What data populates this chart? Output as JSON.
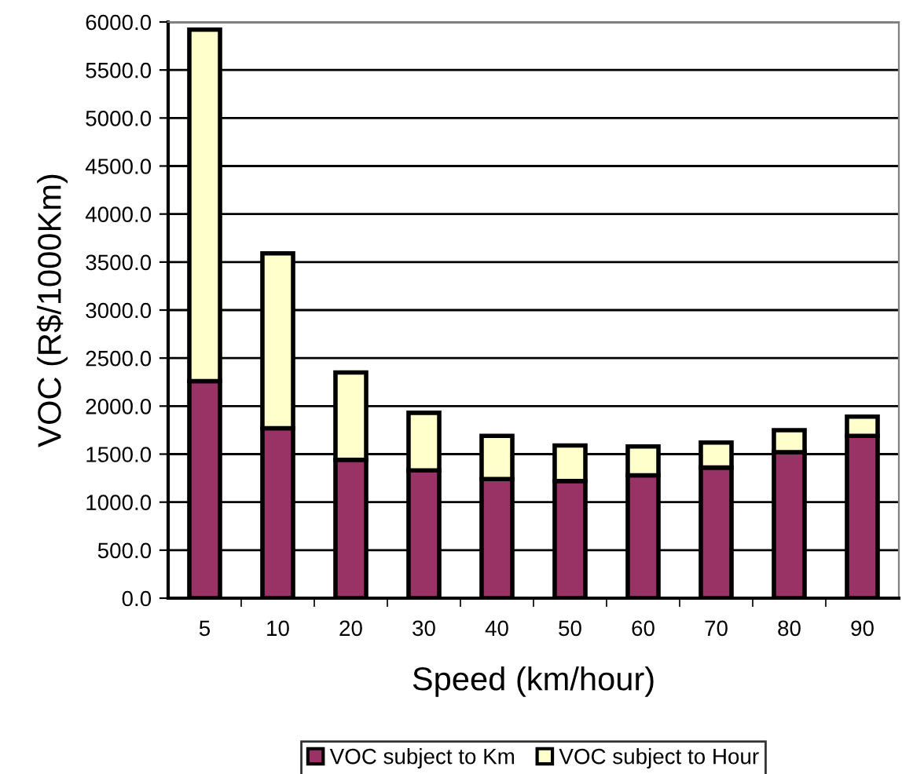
{
  "chart_data": {
    "type": "bar",
    "stacked": true,
    "xlabel": "Speed (km/hour)",
    "ylabel": "VOC (R$/1000Km)",
    "categories": [
      "5",
      "10",
      "20",
      "30",
      "40",
      "50",
      "60",
      "70",
      "80",
      "90"
    ],
    "series": [
      {
        "name": "VOC subject to Km",
        "color": "#993366",
        "values": [
          2260,
          1770,
          1440,
          1330,
          1240,
          1220,
          1280,
          1360,
          1520,
          1690
        ]
      },
      {
        "name": "VOC subject to Hour",
        "color": "#ffffcc",
        "values": [
          3660,
          1820,
          910,
          600,
          450,
          370,
          300,
          260,
          230,
          200
        ]
      }
    ],
    "ylim": [
      0,
      6000
    ],
    "yticks": [
      {
        "value": 0,
        "label": "0.0"
      },
      {
        "value": 500,
        "label": "500.0"
      },
      {
        "value": 1000,
        "label": "1000.0"
      },
      {
        "value": 1500,
        "label": "1500.0"
      },
      {
        "value": 2000,
        "label": "2000.0"
      },
      {
        "value": 2500,
        "label": "2500.0"
      },
      {
        "value": 3000,
        "label": "3000.0"
      },
      {
        "value": 3500,
        "label": "3500.0"
      },
      {
        "value": 4000,
        "label": "4000.0"
      },
      {
        "value": 4500,
        "label": "4500.0"
      },
      {
        "value": 5000,
        "label": "5000.0"
      },
      {
        "value": 5500,
        "label": "5500.0"
      },
      {
        "value": 6000,
        "label": "6000.0"
      }
    ],
    "grid": "y",
    "legend": "bottom"
  }
}
